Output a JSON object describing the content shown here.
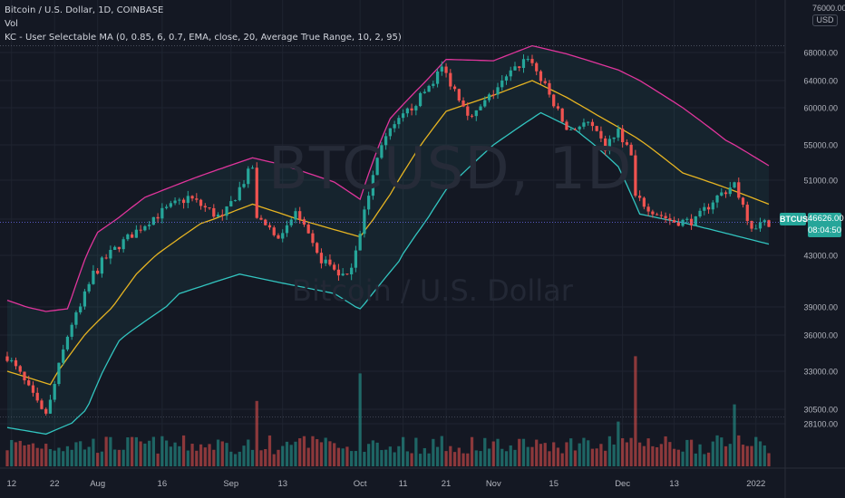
{
  "legend": {
    "line1": "Bitcoin / U.S. Dollar, 1D, COINBASE",
    "line2": "Vol",
    "line3": "KC - User Selectable MA (0, 0.85, 6, 0.7, EMA, close, 20, Average True Range, 10, 2, 95)"
  },
  "watermark": {
    "symbol": "BTCUSD, 1D",
    "description": "Bitcoin / U.S. Dollar"
  },
  "currency": {
    "line1": "76000.00",
    "unit": "USD"
  },
  "last_price": {
    "symbol": "BTCUSD",
    "price": "46626.00",
    "countdown": "08:04:50"
  },
  "colors": {
    "background": "#141823",
    "grid": "#1f2430",
    "up": "#26a69a",
    "down": "#ef5350",
    "upper_band": "#e0359c",
    "mid_band": "#e6b422",
    "lower_band": "#32c5c0",
    "axis_text": "#b2b5be"
  },
  "chart_data": {
    "type": "candlestick",
    "y_ticks": [
      28100,
      30500,
      33000,
      36000,
      39000,
      43000,
      47000,
      51000,
      55000,
      60000,
      64000,
      68000
    ],
    "y_tick_labels": [
      "28100.00",
      "30500.00",
      "33000.00",
      "36000.00",
      "39000.00",
      "43000.00",
      "47000.00",
      "51000.00",
      "55000.00",
      "60000.00",
      "64000.00",
      "68000.00"
    ],
    "x_labels": [
      {
        "text": "12",
        "date": "2021-07-12"
      },
      {
        "text": "22",
        "date": "2021-07-22"
      },
      {
        "text": "Aug",
        "date": "2021-08-01"
      },
      {
        "text": "16",
        "date": "2021-08-16"
      },
      {
        "text": "Sep",
        "date": "2021-09-01"
      },
      {
        "text": "13",
        "date": "2021-09-13"
      },
      {
        "text": "Oct",
        "date": "2021-10-01"
      },
      {
        "text": "11",
        "date": "2021-10-11"
      },
      {
        "text": "21",
        "date": "2021-10-21"
      },
      {
        "text": "Nov",
        "date": "2021-11-01"
      },
      {
        "text": "15",
        "date": "2021-11-15"
      },
      {
        "text": "Dec",
        "date": "2021-12-01"
      },
      {
        "text": "13",
        "date": "2021-12-13"
      },
      {
        "text": "2022",
        "date": "2022-01-01"
      }
    ],
    "first_date": "2021-07-11",
    "last_date": "2022-01-04",
    "close_keypoints": [
      [
        "2021-07-11",
        34200
      ],
      [
        "2021-07-20",
        29800
      ],
      [
        "2021-07-22",
        32100
      ],
      [
        "2021-07-26",
        37200
      ],
      [
        "2021-07-31",
        41500
      ],
      [
        "2021-08-07",
        44500
      ],
      [
        "2021-08-14",
        47200
      ],
      [
        "2021-08-22",
        49200
      ],
      [
        "2021-08-30",
        47000
      ],
      [
        "2021-09-06",
        52500
      ],
      [
        "2021-09-07",
        46800
      ],
      [
        "2021-09-13",
        45000
      ],
      [
        "2021-09-16",
        47800
      ],
      [
        "2021-09-21",
        43000
      ],
      [
        "2021-09-28",
        41100
      ],
      [
        "2021-09-30",
        43800
      ],
      [
        "2021-10-06",
        55300
      ],
      [
        "2021-10-15",
        61500
      ],
      [
        "2021-10-20",
        65800
      ],
      [
        "2021-10-27",
        58500
      ],
      [
        "2021-11-02",
        63000
      ],
      [
        "2021-11-09",
        67500
      ],
      [
        "2021-11-12",
        64200
      ],
      [
        "2021-11-18",
        57000
      ],
      [
        "2021-11-23",
        57800
      ],
      [
        "2021-11-27",
        54600
      ],
      [
        "2021-11-30",
        57000
      ],
      [
        "2021-12-03",
        53700
      ],
      [
        "2021-12-04",
        49200
      ],
      [
        "2021-12-09",
        47600
      ],
      [
        "2021-12-13",
        46700
      ],
      [
        "2021-12-18",
        46800
      ],
      [
        "2021-12-22",
        48900
      ],
      [
        "2021-12-27",
        50600
      ],
      [
        "2021-12-31",
        46200
      ],
      [
        "2022-01-04",
        46626
      ]
    ],
    "upper_band_keypoints": [
      [
        "2021-07-11",
        39500
      ],
      [
        "2021-07-20",
        38500
      ],
      [
        "2021-07-25",
        38800
      ],
      [
        "2021-08-01",
        45500
      ],
      [
        "2021-08-12",
        49200
      ],
      [
        "2021-08-25",
        51500
      ],
      [
        "2021-09-06",
        53500
      ],
      [
        "2021-09-13",
        52700
      ],
      [
        "2021-09-25",
        50800
      ],
      [
        "2021-10-01",
        49000
      ],
      [
        "2021-10-08",
        58500
      ],
      [
        "2021-10-21",
        67000
      ],
      [
        "2021-11-01",
        66800
      ],
      [
        "2021-11-10",
        69000
      ],
      [
        "2021-11-18",
        67800
      ],
      [
        "2021-11-30",
        65500
      ],
      [
        "2021-12-05",
        64000
      ],
      [
        "2021-12-15",
        60000
      ],
      [
        "2021-12-25",
        55600
      ],
      [
        "2022-01-04",
        52600
      ]
    ],
    "mid_band_keypoints": [
      [
        "2021-07-11",
        33000
      ],
      [
        "2021-07-21",
        32100
      ],
      [
        "2021-07-30",
        36500
      ],
      [
        "2021-08-10",
        41500
      ],
      [
        "2021-08-25",
        46500
      ],
      [
        "2021-09-06",
        48500
      ],
      [
        "2021-09-13",
        47500
      ],
      [
        "2021-09-25",
        45800
      ],
      [
        "2021-10-01",
        45000
      ],
      [
        "2021-10-08",
        49500
      ],
      [
        "2021-10-21",
        59500
      ],
      [
        "2021-11-01",
        61800
      ],
      [
        "2021-11-10",
        64000
      ],
      [
        "2021-11-18",
        61500
      ],
      [
        "2021-11-25",
        59000
      ],
      [
        "2021-12-04",
        56000
      ],
      [
        "2021-12-15",
        51800
      ],
      [
        "2021-12-25",
        50200
      ],
      [
        "2022-01-04",
        48500
      ]
    ],
    "lower_band_keypoints": [
      [
        "2021-07-11",
        27500
      ],
      [
        "2021-07-20",
        26500
      ],
      [
        "2021-07-26",
        28200
      ],
      [
        "2021-08-06",
        35500
      ],
      [
        "2021-08-20",
        40000
      ],
      [
        "2021-09-03",
        41500
      ],
      [
        "2021-09-13",
        40800
      ],
      [
        "2021-09-25",
        40000
      ],
      [
        "2021-10-01",
        38800
      ],
      [
        "2021-10-10",
        42500
      ],
      [
        "2021-10-21",
        50000
      ],
      [
        "2021-11-01",
        55000
      ],
      [
        "2021-11-12",
        59300
      ],
      [
        "2021-11-20",
        57000
      ],
      [
        "2021-11-30",
        52500
      ],
      [
        "2021-12-05",
        47500
      ],
      [
        "2021-12-15",
        46600
      ],
      [
        "2021-12-25",
        45400
      ],
      [
        "2022-01-04",
        44200
      ]
    ],
    "volume_spikes": [
      [
        "2021-12-04",
        3.2
      ],
      [
        "2021-10-01",
        2.7
      ],
      [
        "2021-12-27",
        1.8
      ],
      [
        "2021-09-07",
        1.9
      ],
      [
        "2021-11-30",
        1.3
      ]
    ]
  }
}
